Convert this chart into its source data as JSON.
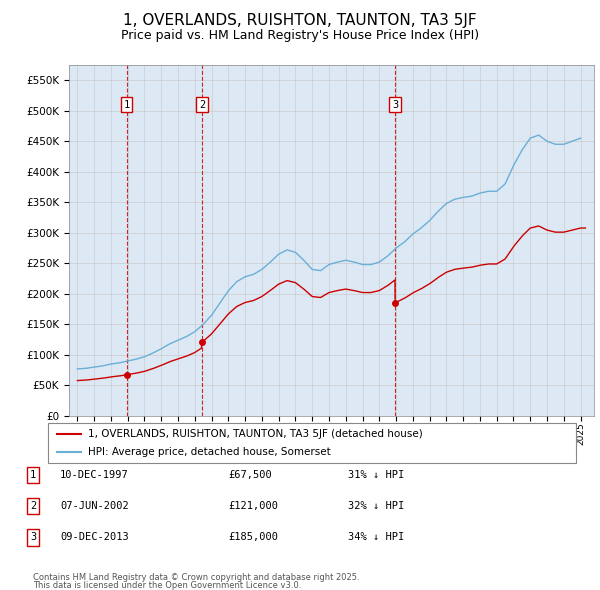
{
  "title": "1, OVERLANDS, RUISHTON, TAUNTON, TA3 5JF",
  "subtitle": "Price paid vs. HM Land Registry's House Price Index (HPI)",
  "legend_line1": "1, OVERLANDS, RUISHTON, TAUNTON, TA3 5JF (detached house)",
  "legend_line2": "HPI: Average price, detached house, Somerset",
  "footer1": "Contains HM Land Registry data © Crown copyright and database right 2025.",
  "footer2": "This data is licensed under the Open Government Licence v3.0.",
  "table": [
    {
      "num": "1",
      "date": "10-DEC-1997",
      "price": "£67,500",
      "hpi": "31% ↓ HPI"
    },
    {
      "num": "2",
      "date": "07-JUN-2002",
      "price": "£121,000",
      "hpi": "32% ↓ HPI"
    },
    {
      "num": "3",
      "date": "09-DEC-2013",
      "price": "£185,000",
      "hpi": "34% ↓ HPI"
    }
  ],
  "sale_dates": [
    "1997-12-10",
    "2002-06-07",
    "2013-12-09"
  ],
  "sale_prices": [
    67500,
    121000,
    185000
  ],
  "hpi_color": "#6baed6",
  "price_color": "#cc0000",
  "dashed_color": "#cc0000",
  "grid_color": "#cccccc",
  "background_plot": "#dce9f5",
  "ylim": [
    0,
    575000
  ],
  "yticks": [
    0,
    50000,
    100000,
    150000,
    200000,
    250000,
    300000,
    350000,
    400000,
    450000,
    500000,
    550000
  ],
  "title_fontsize": 11,
  "subtitle_fontsize": 9,
  "hpi_data_years": [
    1995.0,
    1995.5,
    1996.0,
    1996.5,
    1997.0,
    1997.5,
    1998.0,
    1998.5,
    1999.0,
    1999.5,
    2000.0,
    2000.5,
    2001.0,
    2001.5,
    2002.0,
    2002.5,
    2003.0,
    2003.5,
    2004.0,
    2004.5,
    2005.0,
    2005.5,
    2006.0,
    2006.5,
    2007.0,
    2007.5,
    2008.0,
    2008.5,
    2009.0,
    2009.5,
    2010.0,
    2010.5,
    2011.0,
    2011.5,
    2012.0,
    2012.5,
    2013.0,
    2013.5,
    2014.0,
    2014.5,
    2015.0,
    2015.5,
    2016.0,
    2016.5,
    2017.0,
    2017.5,
    2018.0,
    2018.5,
    2019.0,
    2019.5,
    2020.0,
    2020.5,
    2021.0,
    2021.5,
    2022.0,
    2022.5,
    2023.0,
    2023.5,
    2024.0,
    2024.5,
    2025.0
  ],
  "hpi_data_values": [
    77000,
    78000,
    80000,
    82000,
    85000,
    87000,
    90000,
    93000,
    97000,
    103000,
    110000,
    118000,
    124000,
    130000,
    138000,
    150000,
    165000,
    185000,
    205000,
    220000,
    228000,
    232000,
    240000,
    252000,
    265000,
    272000,
    268000,
    255000,
    240000,
    238000,
    248000,
    252000,
    255000,
    252000,
    248000,
    248000,
    252000,
    262000,
    275000,
    285000,
    298000,
    308000,
    320000,
    335000,
    348000,
    355000,
    358000,
    360000,
    365000,
    368000,
    368000,
    380000,
    410000,
    435000,
    455000,
    460000,
    450000,
    445000,
    445000,
    450000,
    455000
  ]
}
